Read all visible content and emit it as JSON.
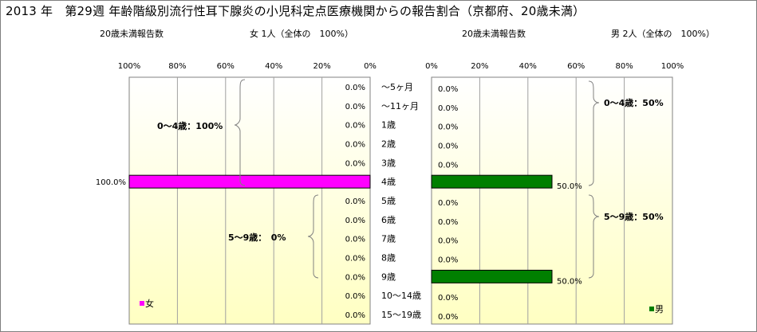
{
  "title": "2013 年　第29週 年齢階級別流行性耳下腺炎の小児科定点医療機関からの報告割合（京都府、20歳未満）",
  "female": {
    "header_label": "20歳未満報告数",
    "header_count": "女 1人（全体の　100%）",
    "legend": "女",
    "color": "#ff00ff",
    "group_labels": [
      "0～4歳：100%",
      "5～9歳：　0%"
    ]
  },
  "male": {
    "header_label": "20歳未満報告数",
    "header_count": "男 2人（全体の　100%）",
    "legend": "男",
    "color": "#007f00",
    "group_labels": [
      "0～4歳：50%",
      "5～9歳：50%"
    ]
  },
  "chart_data": [
    {
      "type": "bar",
      "orientation": "horizontal",
      "direction": "right-to-left",
      "series": [
        {
          "name": "女",
          "values": [
            0,
            0,
            0,
            0,
            0,
            100,
            0,
            0,
            0,
            0,
            0,
            0,
            0
          ]
        }
      ],
      "categories": [
        "～5ヶ月",
        "～11ヶ月",
        "1歳",
        "2歳",
        "3歳",
        "4歳",
        "5歳",
        "6歳",
        "7歳",
        "8歳",
        "9歳",
        "10～14歳",
        "15～19歳"
      ],
      "value_labels": [
        "0.0%",
        "0.0%",
        "0.0%",
        "0.0%",
        "0.0%",
        "100.0%",
        "0.0%",
        "0.0%",
        "0.0%",
        "0.0%",
        "0.0%",
        "0.0%",
        "0.0%"
      ],
      "xlim": [
        0,
        100
      ],
      "xticks": [
        "100%",
        "80%",
        "60%",
        "40%",
        "20%",
        "0%"
      ],
      "grid": true,
      "legend": "bottom-left"
    },
    {
      "type": "bar",
      "orientation": "horizontal",
      "direction": "left-to-right",
      "series": [
        {
          "name": "男",
          "values": [
            0,
            0,
            0,
            0,
            0,
            50,
            0,
            0,
            0,
            0,
            50,
            0,
            0
          ]
        }
      ],
      "categories": [
        "～5ヶ月",
        "～11ヶ月",
        "1歳",
        "2歳",
        "3歳",
        "4歳",
        "5歳",
        "6歳",
        "7歳",
        "8歳",
        "9歳",
        "10～14歳",
        "15～19歳"
      ],
      "value_labels": [
        "0.0%",
        "0.0%",
        "0.0%",
        "0.0%",
        "0.0%",
        "50.0%",
        "0.0%",
        "0.0%",
        "0.0%",
        "0.0%",
        "50.0%",
        "0.0%",
        "0.0%"
      ],
      "xlim": [
        0,
        100
      ],
      "xticks": [
        "0%",
        "20%",
        "40%",
        "60%",
        "80%",
        "100%"
      ],
      "grid": true,
      "legend": "bottom-right"
    }
  ]
}
